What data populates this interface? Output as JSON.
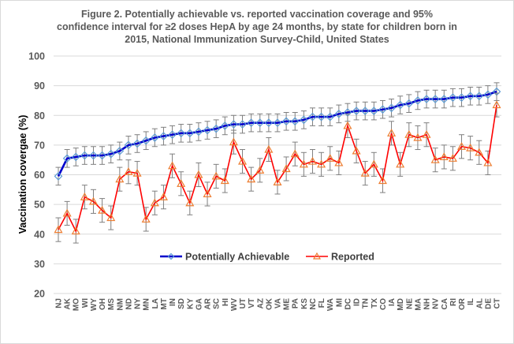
{
  "chart_data": {
    "type": "line",
    "title": "Figure 2. Potentially achievable vs. reported vaccination coverage and 95% confidence interval for ≥2 doses HepA by age 24 months, by state for children born in 2015, National Immunization Survey-Child, United States",
    "title_lines": [
      "Figure 2. Potentially achievable vs. reported vaccination coverage and 95%",
      "confidence interval for ≥2 doses HepA by age 24 months, by state for children born in",
      "2015, National Immunization Survey-Child, United States"
    ],
    "xlabel": "",
    "ylabel": "Vaccination covergae (%)",
    "ylim": [
      20,
      100
    ],
    "yticks": [
      20,
      30,
      40,
      50,
      60,
      70,
      80,
      90,
      100
    ],
    "grid": true,
    "legend_position": "bottom-center",
    "categories": [
      "NJ",
      "AK",
      "MO",
      "WI",
      "WY",
      "OH",
      "MS",
      "NM",
      "ND",
      "NY",
      "MN",
      "LA",
      "MT",
      "IN",
      "SD",
      "KY",
      "GA",
      "AR",
      "SC",
      "HI",
      "WV",
      "UT",
      "VT",
      "AZ",
      "OK",
      "VA",
      "ME",
      "PA",
      "KS",
      "NC",
      "FL",
      "WA",
      "MI",
      "DC",
      "ID",
      "TN",
      "TX",
      "CO",
      "IA",
      "MD",
      "NE",
      "MA",
      "NH",
      "NV",
      "CA",
      "RI",
      "OR",
      "IL",
      "AL",
      "DE",
      "CT"
    ],
    "series": [
      {
        "name": "Potentially Achievable",
        "color": "#0000cc",
        "marker": "diamond",
        "marker_color": "#5b9bd5",
        "values": [
          59.5,
          65.5,
          66,
          66.5,
          66.5,
          66.5,
          67,
          68,
          70,
          70.5,
          71.5,
          72.5,
          73,
          73.5,
          74,
          74,
          74.5,
          75,
          75.5,
          76.5,
          77,
          77,
          77.5,
          77.5,
          77.5,
          77.5,
          78,
          78,
          78.5,
          79.5,
          79.5,
          79.5,
          80.5,
          81,
          81.5,
          81.5,
          81.5,
          82,
          82.5,
          83.5,
          84,
          85,
          85.5,
          85.5,
          85.5,
          86,
          86,
          86.5,
          86.5,
          87,
          88
        ],
        "ci_halfwidth": 3
      },
      {
        "name": "Reported",
        "color": "#ff0000",
        "marker": "triangle",
        "marker_color": "#ed7d31",
        "values": [
          41.5,
          47,
          41,
          52.5,
          51,
          48,
          45.5,
          58.5,
          61,
          60.5,
          45,
          50.5,
          52.5,
          63,
          57,
          50.5,
          60,
          53.5,
          59.5,
          58,
          71,
          64.5,
          58.5,
          61.5,
          68.5,
          57.5,
          62,
          67,
          63.5,
          64.5,
          63.5,
          65.5,
          64,
          76.5,
          68,
          60.5,
          63.5,
          58,
          74,
          63.5,
          73.5,
          72.5,
          73.5,
          65,
          66,
          65.5,
          69.5,
          69,
          67.5,
          64,
          83.5
        ],
        "ci_halfwidth": 4
      }
    ]
  }
}
